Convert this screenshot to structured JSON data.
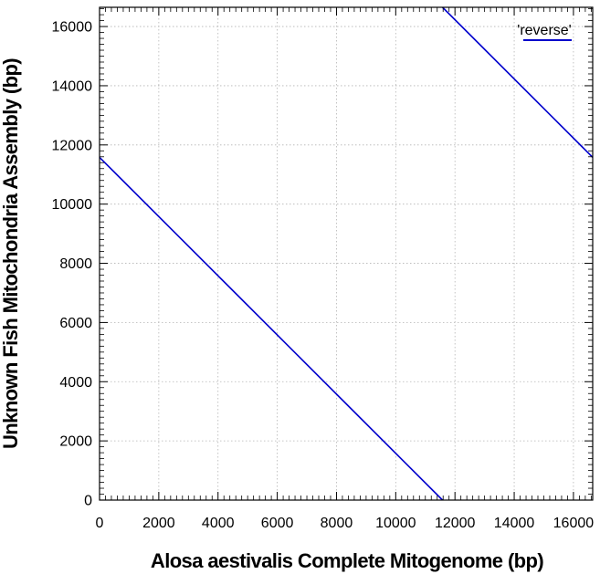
{
  "chart_data": {
    "type": "line",
    "xlabel": "Alosa aestivalis Complete Mitogenome (bp)",
    "ylabel": "Unknown Fish Mitochondria Assembly (bp)",
    "xlim": [
      0,
      16650
    ],
    "ylim": [
      0,
      16650
    ],
    "x_ticks": [
      0,
      2000,
      4000,
      6000,
      8000,
      10000,
      12000,
      14000,
      16000
    ],
    "y_ticks": [
      0,
      2000,
      4000,
      6000,
      8000,
      10000,
      12000,
      14000,
      16000
    ],
    "grid": true,
    "legend_position": "top-right",
    "series": [
      {
        "name": "'reverse'",
        "color": "#0000cc",
        "segments": [
          [
            [
              0,
              11580
            ],
            [
              11580,
              0
            ]
          ],
          [
            [
              11580,
              16650
            ],
            [
              16650,
              11580
            ]
          ]
        ]
      }
    ]
  }
}
